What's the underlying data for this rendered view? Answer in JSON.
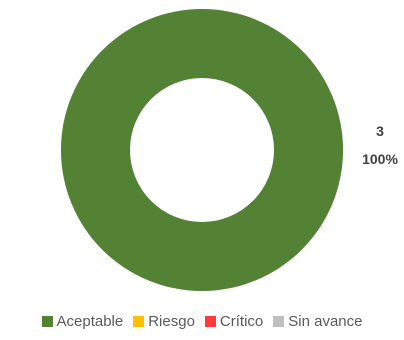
{
  "chart_data": {
    "type": "pie",
    "variant": "donut",
    "categories": [
      "Aceptable",
      "Riesgo",
      "Crítico",
      "Sin avance"
    ],
    "values": [
      3,
      0,
      0,
      0
    ],
    "colors": [
      "#548235",
      "#FFC000",
      "#FF3B3B",
      "#BFBFBF"
    ],
    "data_labels": {
      "count": "3",
      "percent": "100%"
    },
    "legend_position": "bottom"
  }
}
